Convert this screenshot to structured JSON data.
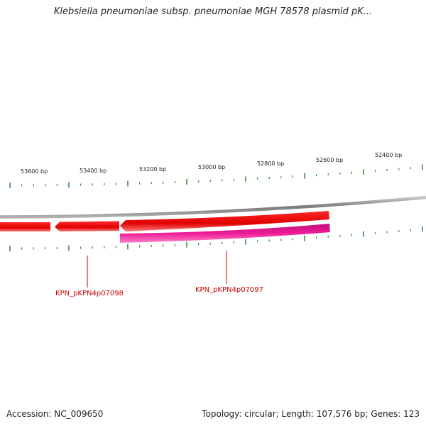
{
  "header": {
    "title": "Klebsiella pneumoniae subsp. pneumoniae MGH 78578 plasmid pK..."
  },
  "scale": {
    "tick_labels": [
      "53600 bp",
      "53400 bp",
      "53200 bp",
      "53000 bp",
      "52800 bp",
      "52600 bp",
      "52400 bp"
    ],
    "tick_color": "#2e8b2e"
  },
  "genes": [
    {
      "label": "KPN_pKPN4p07098",
      "color": "#cc0000"
    },
    {
      "label": "KPN_pKPN4p07097",
      "color": "#cc0000"
    }
  ],
  "colors": {
    "backbone": "#8a8a8a",
    "feature_red": "#ee0000",
    "feature_pink": "#e8108c"
  },
  "footer": {
    "accession": "Accession: NC_009650",
    "summary": "Topology: circular; Length: 107,576 bp; Genes: 123"
  }
}
